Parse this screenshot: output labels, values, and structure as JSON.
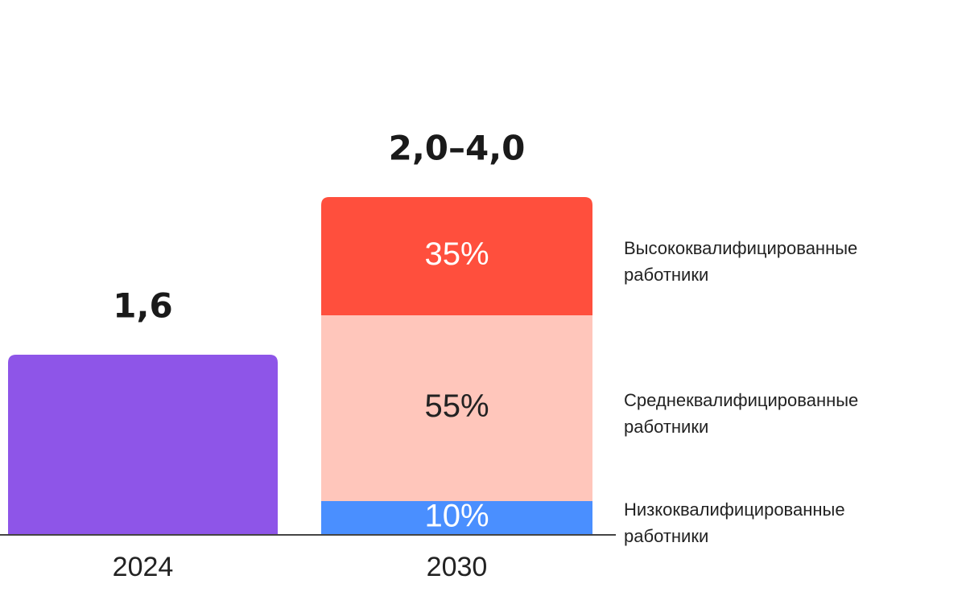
{
  "chart_data": {
    "type": "stacked-bar",
    "categories": [
      "2024",
      "2030"
    ],
    "bars": [
      {
        "value": 1.6,
        "value_label": "1,6",
        "color": "#8e55e8"
      },
      {
        "range": [
          2.0,
          4.0
        ],
        "value_label": "2,0–4,0",
        "segments": [
          {
            "name": "Низкоквалифицированные работники",
            "value": 10,
            "value_label": "10%",
            "color": "#4a8fff",
            "label_color": "#ffffff"
          },
          {
            "name": "Среднеквалифицированные работники",
            "value": 55,
            "value_label": "55%",
            "color": "#ffc6bb",
            "label_color": "#222222"
          },
          {
            "name": "Высококвалифицированные работники",
            "value": 35,
            "value_label": "35%",
            "color": "#ff4f3d",
            "label_color": "#ffffff"
          }
        ]
      }
    ]
  }
}
